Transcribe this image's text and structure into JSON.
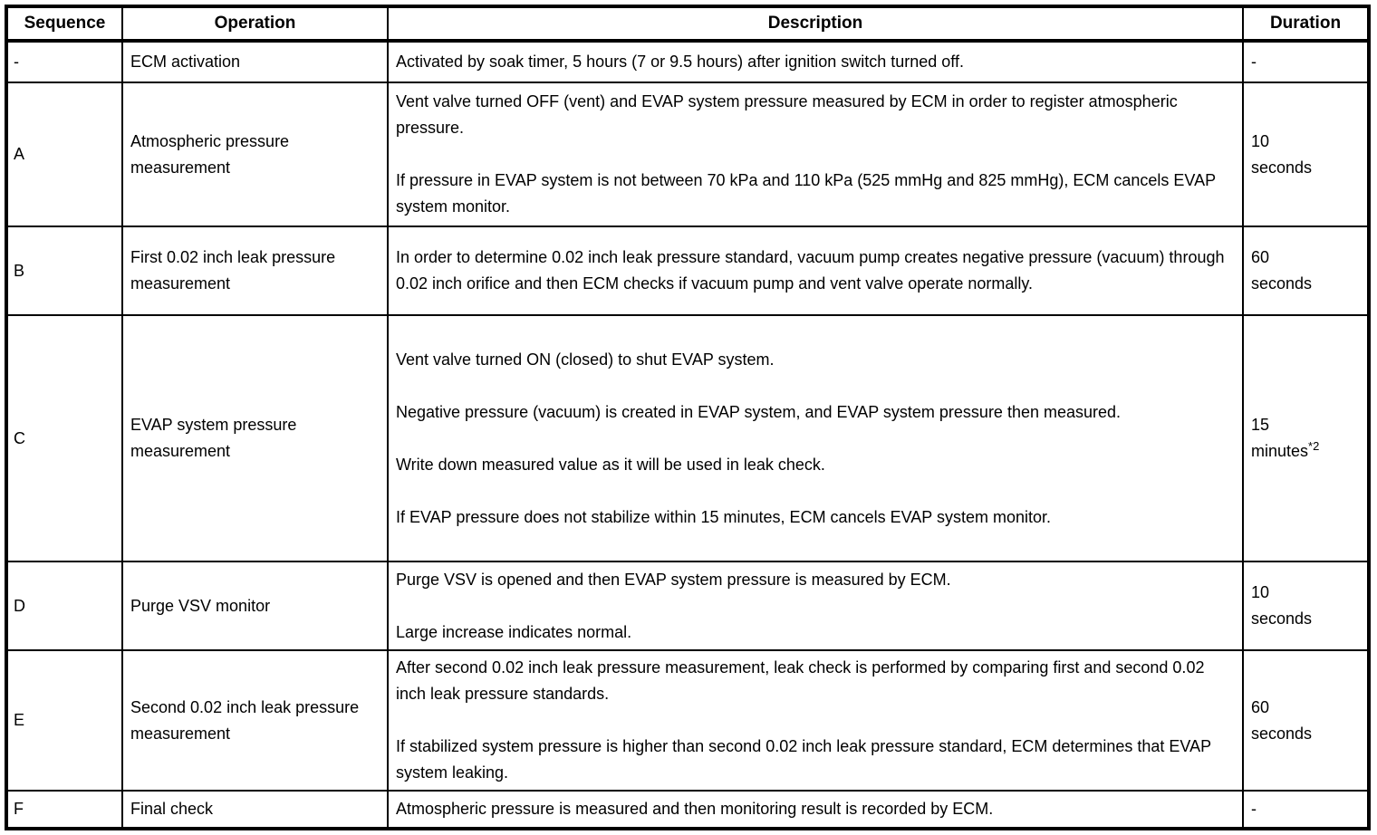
{
  "table": {
    "columns": [
      "Sequence",
      "Operation",
      "Description",
      "Duration"
    ],
    "rows": [
      {
        "sequence": "-",
        "operation": "ECM activation",
        "description": "Activated by soak timer, 5 hours (7 or 9.5 hours) after ignition switch turned off.",
        "duration": "-"
      },
      {
        "sequence": "A",
        "operation": "Atmospheric pressure measurement",
        "description": "Vent valve turned OFF (vent) and EVAP system pressure measured by ECM in order to register atmospheric pressure.\n\nIf pressure in EVAP system is not between 70 kPa and 110 kPa (525 mmHg and 825 mmHg), ECM cancels EVAP system monitor.",
        "duration": "10\nseconds"
      },
      {
        "sequence": "B",
        "operation": "First 0.02 inch leak pressure measurement",
        "description": "In order to determine 0.02 inch leak pressure standard, vacuum pump creates negative pressure (vacuum) through 0.02 inch orifice and then ECM checks if vacuum pump and vent valve operate normally.",
        "duration": "60\nseconds"
      },
      {
        "sequence": "C",
        "operation": "EVAP system pressure measurement",
        "description": "Vent valve turned ON (closed) to shut EVAP system.\n\nNegative pressure (vacuum) is created in EVAP system, and EVAP system pressure then measured.\n\nWrite down measured value as it will be used in leak check.\n\nIf EVAP pressure does not stabilize within 15 minutes, ECM cancels EVAP system monitor.",
        "duration": "15\nminutes",
        "duration_sup": "*2"
      },
      {
        "sequence": "D",
        "operation": "Purge VSV monitor",
        "description": "Purge VSV is opened and then EVAP system pressure is measured by ECM.\n\nLarge increase indicates normal.",
        "duration": "10\nseconds"
      },
      {
        "sequence": "E",
        "operation": "Second 0.02 inch leak pressure measurement",
        "description": "After second 0.02 inch leak pressure measurement, leak check is performed by comparing first and second 0.02 inch leak pressure standards.\n\nIf stabilized system pressure is higher than second 0.02 inch leak pressure standard, ECM determines that EVAP system leaking.",
        "duration": "60\nseconds"
      },
      {
        "sequence": "F",
        "operation": "Final check",
        "description": "Atmospheric pressure is measured and then monitoring result is recorded by ECM.",
        "duration": "-"
      }
    ]
  }
}
